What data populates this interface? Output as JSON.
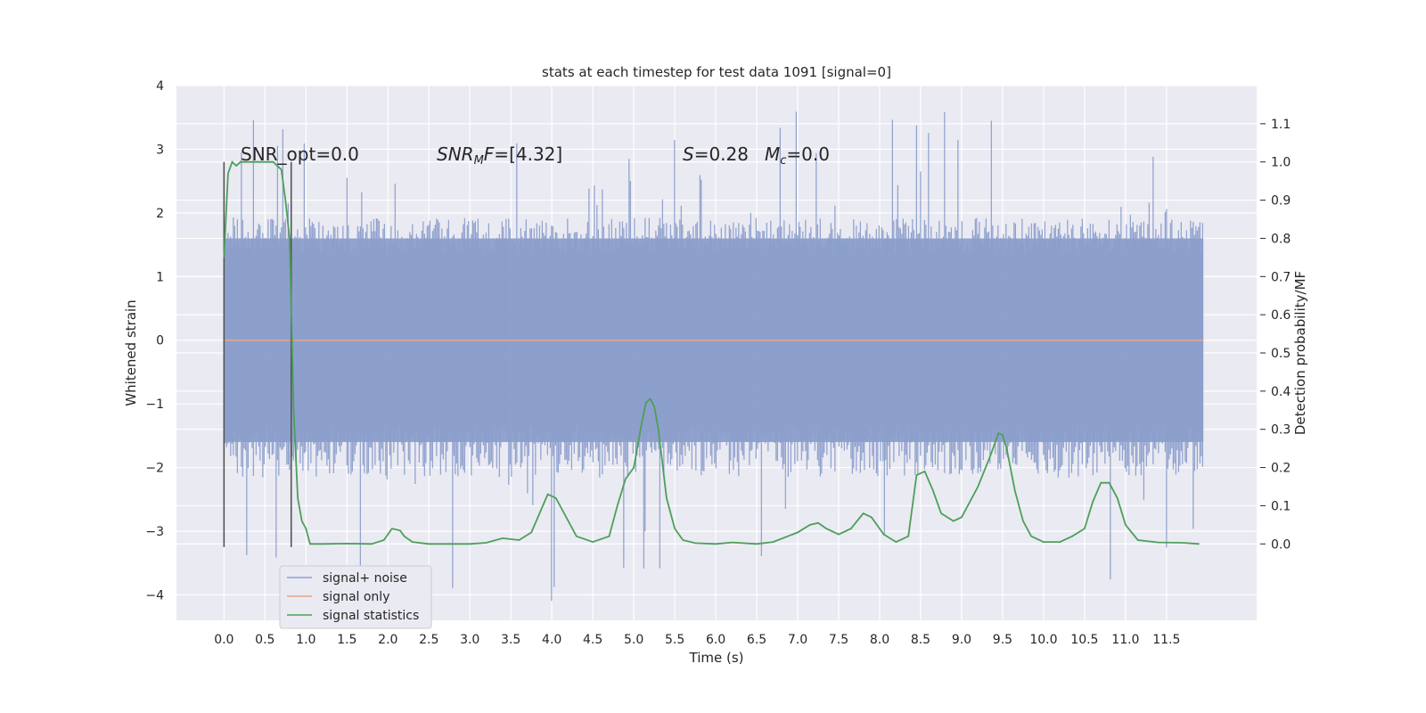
{
  "chart_data": {
    "type": "line",
    "title": "stats at each timestep for test data 1091 [signal=0]",
    "xlabel": "Time (s)",
    "ylabel_left": "Whitened strain",
    "ylabel_right": "Detection probability/MF",
    "xlim": [
      -0.58,
      12.6
    ],
    "ylim_left": [
      -4.4,
      4.0
    ],
    "ylim_right": [
      -0.2,
      1.2
    ],
    "x_ticks": [
      "0.0",
      "0.5",
      "1.0",
      "1.5",
      "2.0",
      "2.5",
      "3.0",
      "3.5",
      "4.0",
      "4.5",
      "5.0",
      "5.5",
      "6.0",
      "6.5",
      "7.0",
      "7.5",
      "8.0",
      "8.5",
      "9.0",
      "9.5",
      "10.0",
      "10.5",
      "11.0",
      "11.5"
    ],
    "y_ticks_left": [
      "4",
      "3",
      "2",
      "1",
      "0",
      "−1",
      "−2",
      "−3",
      "−4"
    ],
    "y_ticks_right": [
      "1.1",
      "1.0",
      "0.9",
      "0.8",
      "0.7",
      "0.6",
      "0.5",
      "0.4",
      "0.3",
      "0.2",
      "0.1",
      "0.0"
    ],
    "grid": true,
    "legend_placement": "lower-left",
    "annotations": {
      "snr_opt": "SNR_opt=0.0",
      "snr_mf": "[4.32]",
      "s_val": "=0.28",
      "mc_val": "=0.0"
    },
    "vertical_markers_s": [
      0.0,
      0.82
    ],
    "series": [
      {
        "name": "signal+ noise",
        "color": "#8c9fcc",
        "kind": "noise_band",
        "x_range": [
          0.0,
          11.95
        ],
        "typical_range": [
          -1.6,
          1.6
        ],
        "extreme_range": [
          -4.1,
          3.65
        ]
      },
      {
        "name": "signal only",
        "color": "#e5a68c",
        "x": [
          0.0,
          11.95
        ],
        "y": [
          0.0,
          0.0
        ]
      },
      {
        "name": "signal statistics",
        "color": "#4c9f5a",
        "axis": "right",
        "x": [
          0.0,
          0.05,
          0.1,
          0.15,
          0.2,
          0.3,
          0.4,
          0.5,
          0.6,
          0.7,
          0.75,
          0.8,
          0.85,
          0.9,
          0.95,
          1.0,
          1.05,
          1.2,
          1.5,
          1.8,
          1.95,
          2.05,
          2.15,
          2.2,
          2.3,
          2.5,
          3.0,
          3.2,
          3.4,
          3.6,
          3.75,
          3.85,
          3.95,
          4.05,
          4.15,
          4.3,
          4.5,
          4.7,
          4.8,
          4.9,
          5.0,
          5.1,
          5.15,
          5.2,
          5.25,
          5.3,
          5.4,
          5.5,
          5.6,
          5.75,
          6.0,
          6.2,
          6.5,
          6.7,
          7.0,
          7.15,
          7.25,
          7.35,
          7.5,
          7.65,
          7.8,
          7.9,
          8.05,
          8.2,
          8.35,
          8.45,
          8.55,
          8.65,
          8.75,
          8.9,
          9.0,
          9.2,
          9.35,
          9.45,
          9.5,
          9.55,
          9.65,
          9.75,
          9.85,
          10.0,
          10.2,
          10.35,
          10.5,
          10.6,
          10.7,
          10.8,
          10.9,
          11.0,
          11.15,
          11.4,
          11.7,
          11.9
        ],
        "y": [
          0.75,
          0.97,
          1.0,
          0.99,
          1.0,
          1.0,
          1.0,
          1.0,
          1.0,
          0.98,
          0.9,
          0.8,
          0.35,
          0.12,
          0.06,
          0.04,
          0.0,
          0.0,
          0.001,
          0.0,
          0.01,
          0.04,
          0.035,
          0.02,
          0.005,
          0.0,
          0.0,
          0.003,
          0.015,
          0.01,
          0.03,
          0.08,
          0.13,
          0.12,
          0.08,
          0.02,
          0.005,
          0.02,
          0.1,
          0.17,
          0.2,
          0.32,
          0.37,
          0.38,
          0.36,
          0.3,
          0.12,
          0.04,
          0.01,
          0.002,
          0.0,
          0.004,
          0.0,
          0.005,
          0.03,
          0.05,
          0.055,
          0.04,
          0.025,
          0.04,
          0.08,
          0.07,
          0.025,
          0.005,
          0.02,
          0.18,
          0.19,
          0.14,
          0.08,
          0.06,
          0.07,
          0.15,
          0.23,
          0.29,
          0.285,
          0.25,
          0.14,
          0.06,
          0.02,
          0.005,
          0.005,
          0.02,
          0.04,
          0.11,
          0.16,
          0.16,
          0.12,
          0.05,
          0.01,
          0.004,
          0.003,
          0.0
        ]
      }
    ]
  }
}
